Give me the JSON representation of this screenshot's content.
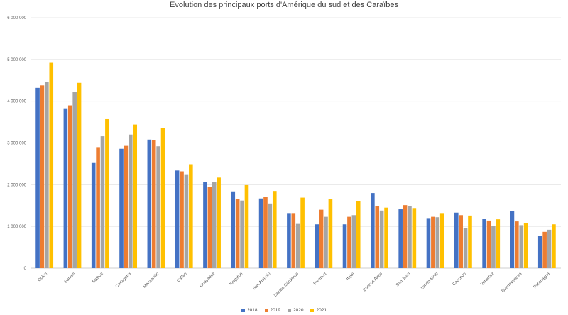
{
  "chart_data": {
    "type": "bar",
    "title": "Evolution des principaux ports d'Amérique du sud et des Caraïbes",
    "xlabel": "",
    "ylabel": "",
    "ylim": [
      0,
      6000000
    ],
    "yticks": [
      "0",
      "1 000 000",
      "2 000 000",
      "3 000 000",
      "4 000 000",
      "5 000 000",
      "6 000 000"
    ],
    "grid": true,
    "legend_position": "bottom",
    "categories": [
      "Colón",
      "Santos",
      "Balboa",
      "Cartagena",
      "Manzanillo",
      "Callao",
      "Guayaquil",
      "Kingston",
      "San Antonio",
      "Lazaro Cárdenas",
      "Freeport",
      "Itajaí",
      "Buenos Aires",
      "San Juan",
      "Limón-Moin",
      "Caucedo",
      "Veracruz",
      "Buenaventura",
      "Paranaguá"
    ],
    "series": [
      {
        "name": "2018",
        "color": "#4472C4",
        "values": [
          4320000,
          3830000,
          2520000,
          2860000,
          3080000,
          2340000,
          2070000,
          1840000,
          1670000,
          1320000,
          1050000,
          1050000,
          1800000,
          1410000,
          1200000,
          1330000,
          1180000,
          1370000,
          770000
        ]
      },
      {
        "name": "2019",
        "color": "#ED7D31",
        "values": [
          4380000,
          3900000,
          2900000,
          2930000,
          3070000,
          2320000,
          1950000,
          1650000,
          1710000,
          1320000,
          1400000,
          1230000,
          1490000,
          1510000,
          1230000,
          1270000,
          1140000,
          1120000,
          870000
        ]
      },
      {
        "name": "2020",
        "color": "#A5A5A5",
        "values": [
          4460000,
          4230000,
          3160000,
          3200000,
          2920000,
          2250000,
          2070000,
          1620000,
          1550000,
          1060000,
          1230000,
          1270000,
          1380000,
          1490000,
          1220000,
          960000,
          1010000,
          1030000,
          920000
        ]
      },
      {
        "name": "2021",
        "color": "#FFC000",
        "values": [
          4920000,
          4440000,
          3570000,
          3440000,
          3360000,
          2490000,
          2170000,
          1990000,
          1850000,
          1690000,
          1650000,
          1610000,
          1450000,
          1440000,
          1320000,
          1260000,
          1170000,
          1080000,
          1050000
        ]
      }
    ]
  }
}
